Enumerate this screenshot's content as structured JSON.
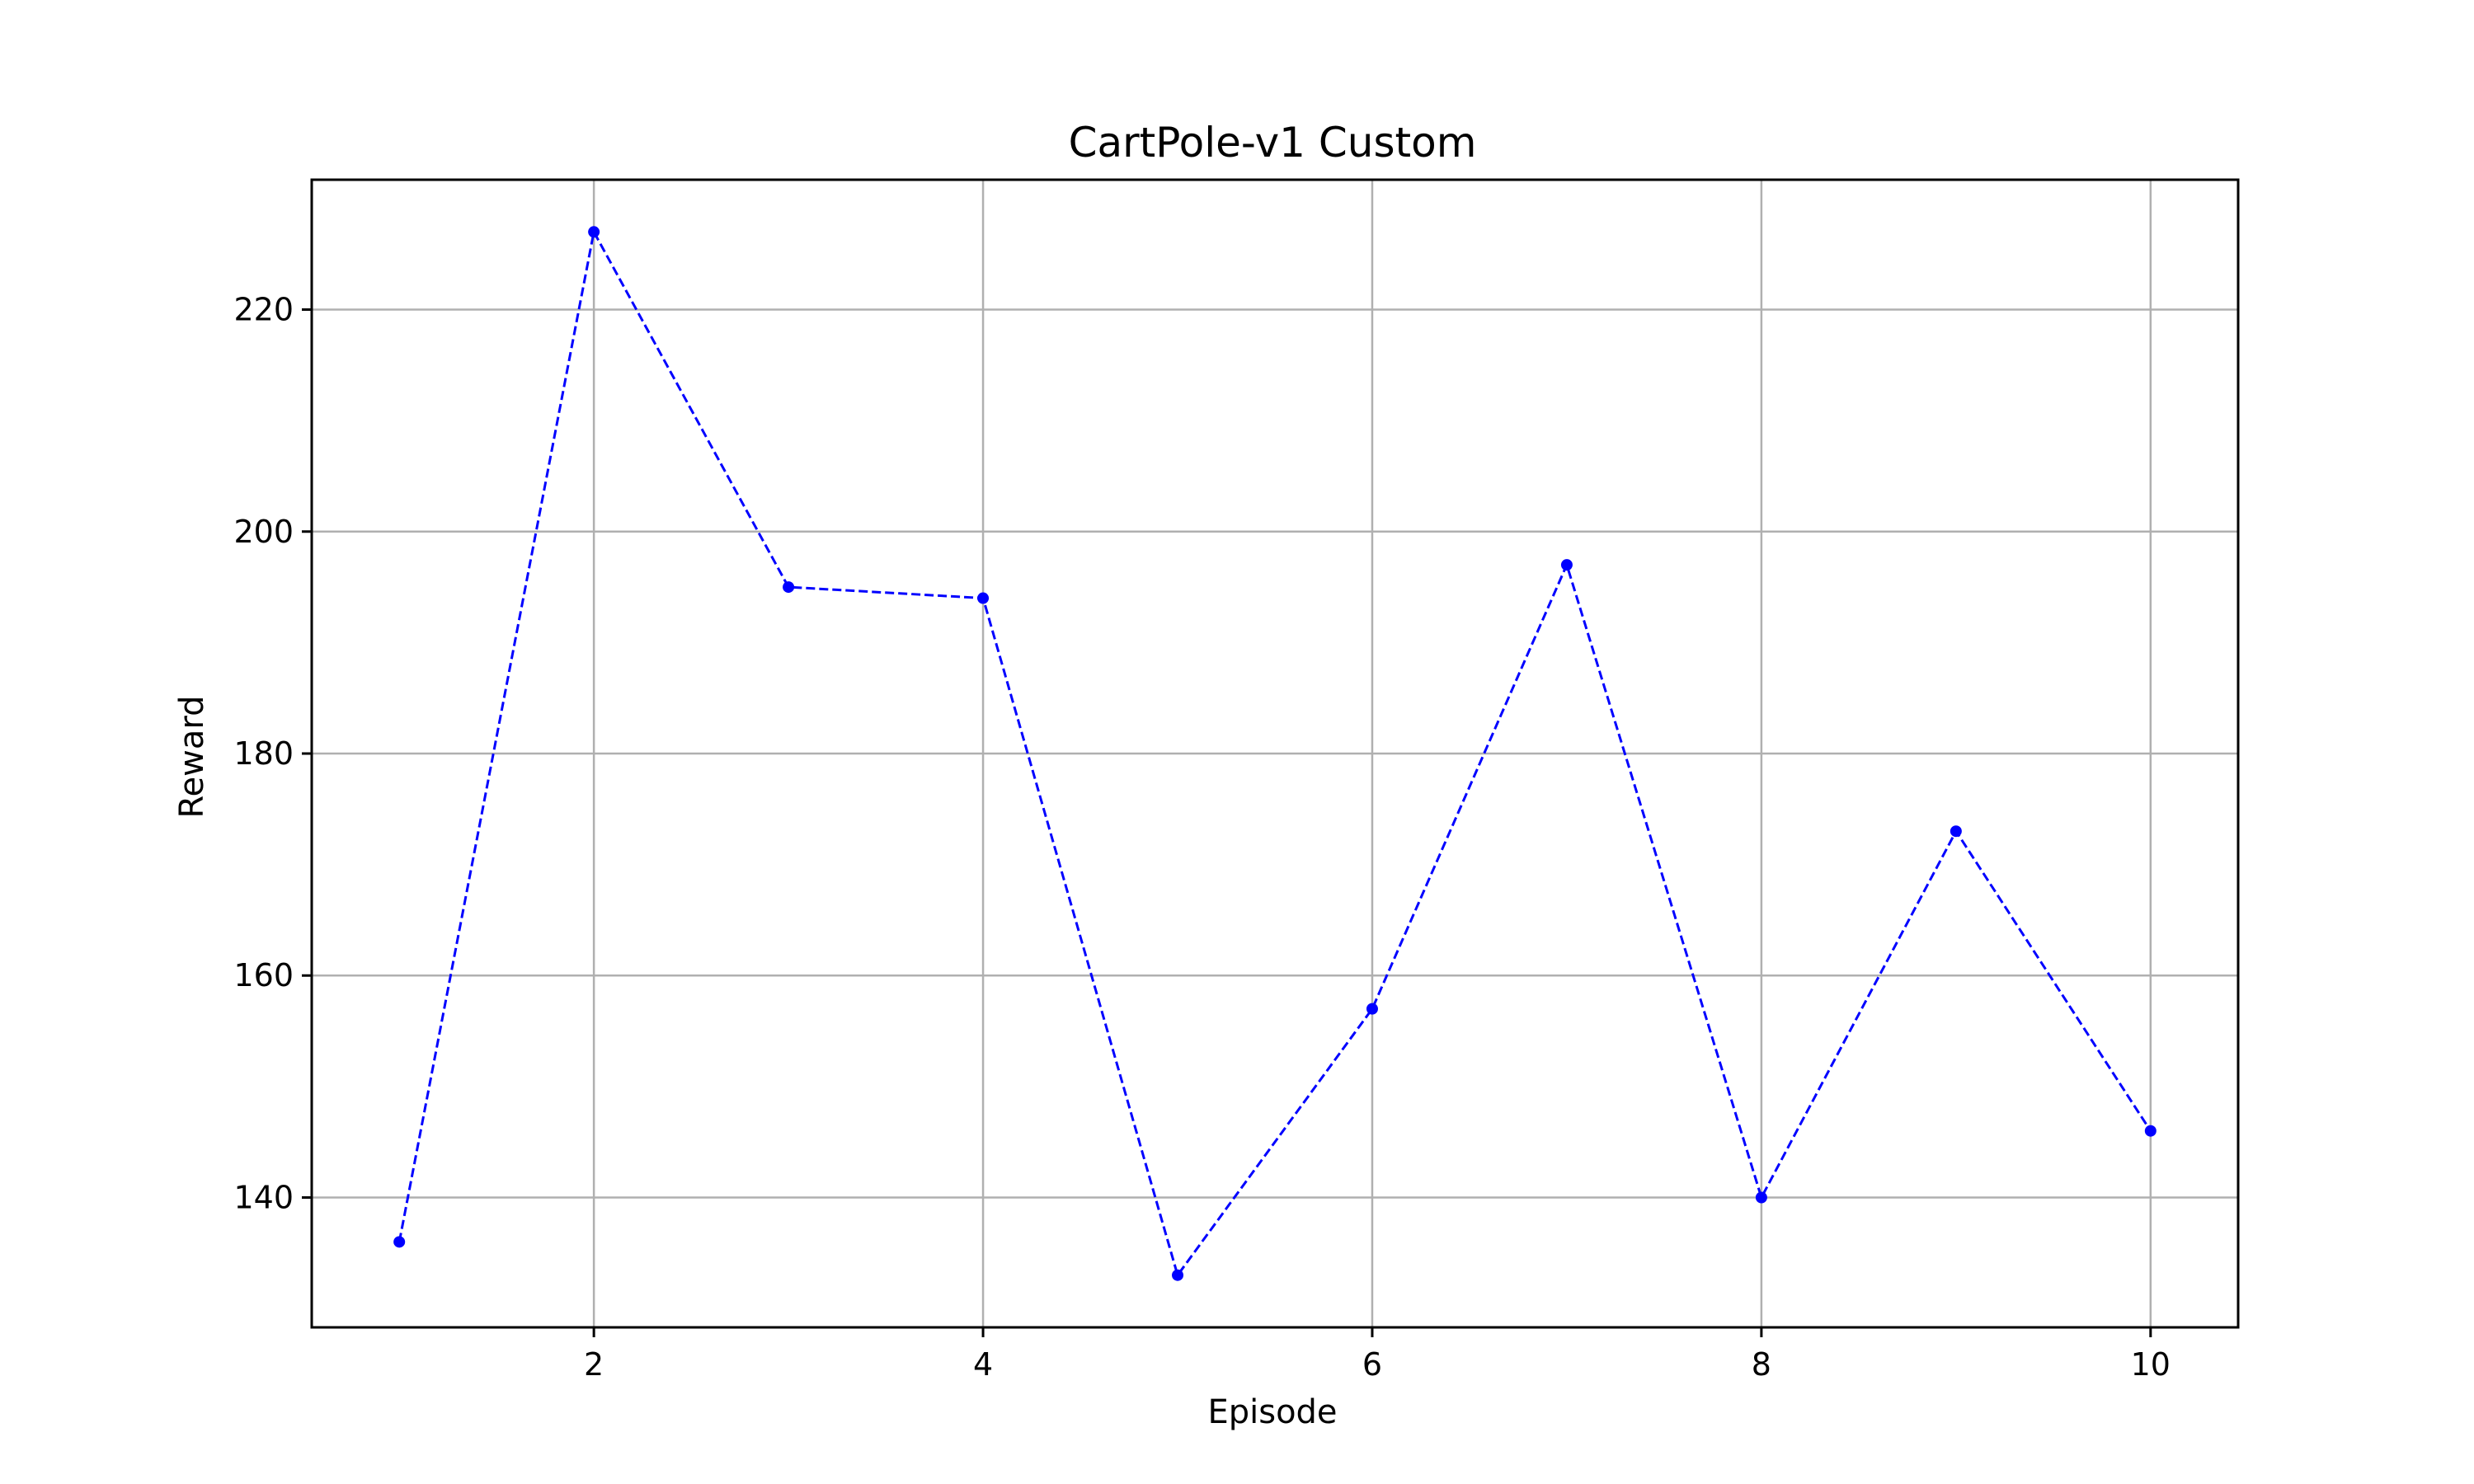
{
  "chart_data": {
    "type": "line",
    "title": "CartPole-v1 Custom",
    "xlabel": "Episode",
    "ylabel": "Reward",
    "x": [
      1,
      2,
      3,
      4,
      5,
      6,
      7,
      8,
      9,
      10
    ],
    "series": [
      {
        "values": [
          136,
          227,
          195,
          194,
          133,
          157,
          197,
          140,
          173,
          146
        ]
      }
    ],
    "xlim": [
      0.55,
      10.45
    ],
    "ylim": [
      128.3,
      231.7
    ],
    "xticks": [
      2,
      4,
      6,
      8,
      10
    ],
    "yticks": [
      140,
      160,
      180,
      200,
      220
    ],
    "grid": true,
    "line_style": "dashed",
    "marker": "circle",
    "colors": {
      "line": "#0000ff",
      "grid": "#b0b0b0",
      "axes": "#000000"
    }
  }
}
